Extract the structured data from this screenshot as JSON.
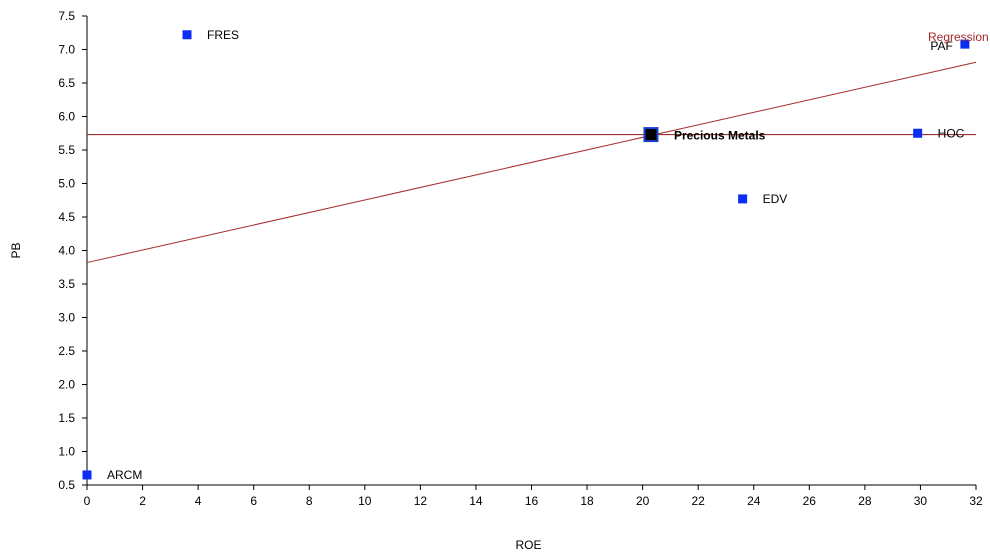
{
  "chart_data": {
    "type": "scatter",
    "xlabel": "ROE",
    "ylabel": "PB",
    "xlim": [
      0,
      32
    ],
    "ylim": [
      0.5,
      7.5
    ],
    "xticks": [
      0,
      2,
      4,
      6,
      8,
      10,
      12,
      14,
      16,
      18,
      20,
      22,
      24,
      26,
      28,
      30,
      32
    ],
    "yticks": [
      0.5,
      1.0,
      1.5,
      2.0,
      2.5,
      3.0,
      3.5,
      4.0,
      4.5,
      5.0,
      5.5,
      6.0,
      6.5,
      7.0,
      7.5
    ],
    "grid": false,
    "points": [
      {
        "label": "FRES",
        "x": 3.6,
        "y": 7.22,
        "color": "#0a2cf5"
      },
      {
        "label": "PAF",
        "x": 31.6,
        "y": 7.08,
        "color": "#0a2cf5"
      },
      {
        "label": "HOC",
        "x": 29.9,
        "y": 5.75,
        "color": "#0a2cf5"
      },
      {
        "label": "EDV",
        "x": 23.6,
        "y": 4.77,
        "color": "#0a2cf5"
      },
      {
        "label": "ARCM",
        "x": 0.0,
        "y": 0.65,
        "color": "#0a2cf5"
      }
    ],
    "highlight_point": {
      "label": "Precious Metals",
      "x": 20.3,
      "y": 5.73,
      "color": "#000000",
      "border_color": "#1a3fd4"
    },
    "reference_line": {
      "y": 5.73,
      "color": "#8b1a1a"
    },
    "regression": {
      "label": "Regression",
      "color": "#a52a2a",
      "start": {
        "x": 0,
        "y": 3.82
      },
      "end": {
        "x": 32,
        "y": 6.81
      }
    }
  }
}
